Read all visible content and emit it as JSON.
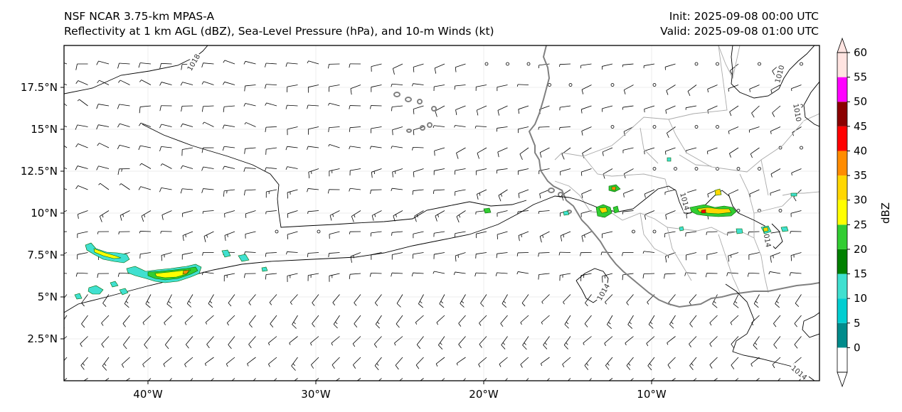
{
  "header": {
    "left_line1": "NSF NCAR 3.75-km MPAS-A",
    "left_line2": "Reflectivity at 1 km AGL (dBZ), Sea-Level Pressure (hPa), and 10-m Winds (kt)",
    "right_line1": "Init: 2025-09-08 00:00 UTC",
    "right_line2": "Valid: 2025-09-08 01:00 UTC"
  },
  "map": {
    "lon_range": [
      -45,
      0
    ],
    "lat_range": [
      0,
      20
    ],
    "x_ticks": [
      {
        "lon": -40,
        "label": "40°W"
      },
      {
        "lon": -30,
        "label": "30°W"
      },
      {
        "lon": -20,
        "label": "20°W"
      },
      {
        "lon": -10,
        "label": "10°W"
      }
    ],
    "y_ticks": [
      {
        "lat": 2.5,
        "label": "2.5°N"
      },
      {
        "lat": 5,
        "label": "5°N"
      },
      {
        "lat": 7.5,
        "label": "7.5°N"
      },
      {
        "lat": 10,
        "label": "10°N"
      },
      {
        "lat": 12.5,
        "label": "12.5°N"
      },
      {
        "lat": 15,
        "label": "15°N"
      },
      {
        "lat": 17.5,
        "label": "17.5°N"
      }
    ],
    "isobars": [
      {
        "label": "1018",
        "lon": -37.3,
        "lat": 19.0,
        "rot": -60
      },
      {
        "label": "1014",
        "lon": -8.0,
        "lat": 10.7,
        "rot": 75
      },
      {
        "label": "1014",
        "lon": -3.1,
        "lat": 8.5,
        "rot": 80
      },
      {
        "label": "1014",
        "lon": -12.9,
        "lat": 5.3,
        "rot": -60
      },
      {
        "label": "1010",
        "lon": -2.4,
        "lat": 18.3,
        "rot": -75
      },
      {
        "label": "1010",
        "lon": -1.3,
        "lat": 16.0,
        "rot": 80
      },
      {
        "label": "1014",
        "lon": -1.2,
        "lat": 0.5,
        "rot": 40
      }
    ],
    "colors": {
      "coast": "#808080",
      "border": "#aaaaaa",
      "isobar": "#000000",
      "barb": "#000000"
    }
  },
  "colorbar": {
    "label": "dBZ",
    "ticks": [
      "0",
      "5",
      "10",
      "15",
      "20",
      "25",
      "30",
      "35",
      "40",
      "45",
      "50",
      "55",
      "60"
    ],
    "colors": [
      "#ffffff",
      "#008b8b",
      "#00ced1",
      "#40e0d0",
      "#008000",
      "#32cd32",
      "#ffff00",
      "#ffd700",
      "#ff8c00",
      "#ff0000",
      "#8b0000",
      "#ff00ff",
      "#ffe4e1"
    ]
  }
}
